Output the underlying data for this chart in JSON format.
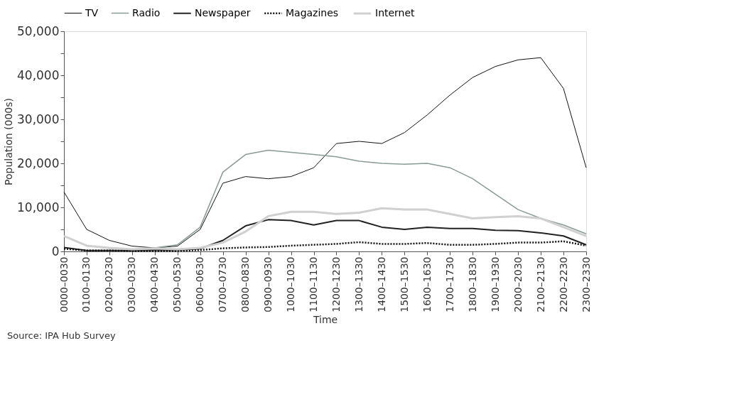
{
  "chart_data": {
    "type": "line",
    "xlabel": "Time",
    "ylabel": "Population (000s)",
    "categories": [
      "0000–0030",
      "0100–0130",
      "0200–0230",
      "0300–0330",
      "0400–0430",
      "0500–0530",
      "0600–0630",
      "0700–0730",
      "0800–0830",
      "0900–0930",
      "1000–1030",
      "1100–1130",
      "1200–1230",
      "1300–1330",
      "1400–1430",
      "1500–1530",
      "1600–1630",
      "1700–1730",
      "1800–1830",
      "1900–1930",
      "2000–2030",
      "2100–2130",
      "2200–2230",
      "2300–2330"
    ],
    "series": [
      {
        "name": "TV",
        "color": "#111111",
        "line_style": "solid",
        "values": [
          13500,
          5000,
          2500,
          1200,
          800,
          1200,
          5000,
          15500,
          17000,
          16500,
          17000,
          19000,
          24500,
          25000,
          24500,
          27000,
          31000,
          35500,
          39500,
          42000,
          43500,
          44000,
          37000,
          19000
        ]
      },
      {
        "name": "Radio",
        "color": "#8a9a96",
        "line_style": "solid",
        "values": [
          3500,
          1300,
          700,
          500,
          800,
          1500,
          5500,
          18000,
          22000,
          23000,
          22500,
          22000,
          21500,
          20500,
          20000,
          19800,
          20000,
          19000,
          16500,
          13000,
          9500,
          7500,
          6000,
          4000
        ]
      },
      {
        "name": "Newspaper",
        "color": "#222222",
        "line_style": "solid",
        "values": [
          900,
          200,
          200,
          200,
          300,
          300,
          600,
          2500,
          5800,
          7200,
          7000,
          6000,
          7000,
          7000,
          5500,
          5000,
          5500,
          5200,
          5200,
          4800,
          4700,
          4200,
          3500,
          1500
        ]
      },
      {
        "name": "Magazines",
        "color": "#111111",
        "line_style": "dotted",
        "values": [
          600,
          200,
          200,
          100,
          100,
          100,
          300,
          700,
          900,
          1000,
          1300,
          1500,
          1700,
          2100,
          1700,
          1700,
          1900,
          1500,
          1500,
          1700,
          2000,
          2000,
          2300,
          1300
        ]
      },
      {
        "name": "Internet",
        "color": "#d0d0d0",
        "line_style": "solid",
        "values": [
          3500,
          1300,
          800,
          500,
          700,
          500,
          800,
          2000,
          4500,
          8000,
          9000,
          9000,
          8500,
          8800,
          9800,
          9500,
          9500,
          8500,
          7500,
          7800,
          8000,
          7500,
          5500,
          3500
        ]
      }
    ],
    "ylim": [
      0,
      50000
    ],
    "yticks": [
      0,
      {
        "value": 5000,
        "label": null
      },
      {
        "value": 10000,
        "label": "10,000"
      },
      {
        "value": 15000,
        "label": null
      },
      {
        "value": 20000,
        "label": "20,000"
      },
      {
        "value": 25000,
        "label": null
      },
      {
        "value": 30000,
        "label": "30,000"
      },
      {
        "value": 35000,
        "label": null
      },
      {
        "value": 40000,
        "label": "40,000"
      },
      {
        "value": 45000,
        "label": null
      },
      {
        "value": 50000,
        "label": "50,000"
      }
    ],
    "grid": false,
    "legend": "top",
    "marker": "none",
    "annotations": [
      "Source: IPA Hub Survey"
    ]
  }
}
